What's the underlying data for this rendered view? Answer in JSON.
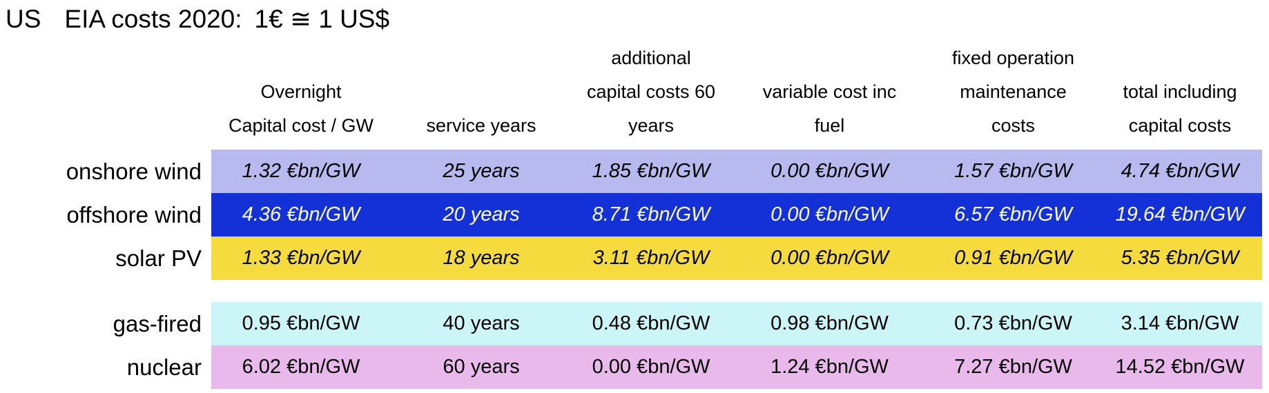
{
  "title": {
    "country": "US",
    "label": "EIA costs 2020:",
    "rate": "1€ ≅ 1 US$"
  },
  "table": {
    "columns": [
      {
        "l1": "",
        "l2": "Overnight",
        "l3": "Capital cost / GW"
      },
      {
        "l1": "",
        "l2": "",
        "l3": "service years"
      },
      {
        "l1": "additional",
        "l2": "capital costs 60",
        "l3": "years"
      },
      {
        "l1": "",
        "l2": "variable cost inc",
        "l3": "fuel"
      },
      {
        "l1": "fixed operation",
        "l2": "maintenance",
        "l3": "costs"
      },
      {
        "l1": "",
        "l2": "total including",
        "l3": "capital costs"
      }
    ],
    "rows": [
      {
        "label": "onshore wind",
        "bg": "#B8B9EE",
        "fg": "#000000",
        "values": [
          "1.32 €bn/GW",
          "25 years",
          "1.85 €bn/GW",
          "0.00 €bn/GW",
          "1.57 €bn/GW",
          "4.74 €bn/GW"
        ]
      },
      {
        "label": "offshore wind",
        "bg": "#1431D8",
        "fg": "#FFFFFF",
        "values": [
          "4.36 €bn/GW",
          "20 years",
          "8.71 €bn/GW",
          "0.00 €bn/GW",
          "6.57 €bn/GW",
          "19.64 €bn/GW"
        ]
      },
      {
        "label": "solar PV",
        "bg": "#F5DB3E",
        "fg": "#000000",
        "values": [
          "1.33 €bn/GW",
          "18 years",
          "3.11 €bn/GW",
          "0.00 €bn/GW",
          "0.91 €bn/GW",
          "5.35 €bn/GW"
        ]
      },
      {
        "label": "gas-fired",
        "bg": "#CBF5F7",
        "fg": "#000000",
        "values": [
          "0.95 €bn/GW",
          "40 years",
          "0.48 €bn/GW",
          "0.98 €bn/GW",
          "0.73 €bn/GW",
          "3.14 €bn/GW"
        ]
      },
      {
        "label": "nuclear",
        "bg": "#EAB9EC",
        "fg": "#000000",
        "values": [
          "6.02 €bn/GW",
          "60 years",
          "0.00 €bn/GW",
          "1.24 €bn/GW",
          "7.27 €bn/GW",
          "14.52 €bn/GW"
        ]
      }
    ]
  },
  "chart_data": {
    "type": "table",
    "title": "US EIA costs 2020: 1€ ≅ 1 US$",
    "unit": "€bn/GW",
    "columns": [
      "Overnight Capital cost / GW",
      "service years",
      "additional capital costs 60 years",
      "variable cost inc fuel",
      "fixed operation maintenance costs",
      "total including capital costs"
    ],
    "rows": [
      {
        "technology": "onshore wind",
        "overnight_capital_cost": 1.32,
        "service_years": 25,
        "additional_capital_costs_60_years": 1.85,
        "variable_cost_inc_fuel": 0.0,
        "fixed_operation_maintenance_costs": 1.57,
        "total_including_capital_costs": 4.74,
        "row_color": "#B8B9EE"
      },
      {
        "technology": "offshore wind",
        "overnight_capital_cost": 4.36,
        "service_years": 20,
        "additional_capital_costs_60_years": 8.71,
        "variable_cost_inc_fuel": 0.0,
        "fixed_operation_maintenance_costs": 6.57,
        "total_including_capital_costs": 19.64,
        "row_color": "#1431D8"
      },
      {
        "technology": "solar PV",
        "overnight_capital_cost": 1.33,
        "service_years": 18,
        "additional_capital_costs_60_years": 3.11,
        "variable_cost_inc_fuel": 0.0,
        "fixed_operation_maintenance_costs": 0.91,
        "total_including_capital_costs": 5.35,
        "row_color": "#F5DB3E"
      },
      {
        "technology": "gas-fired",
        "overnight_capital_cost": 0.95,
        "service_years": 40,
        "additional_capital_costs_60_years": 0.48,
        "variable_cost_inc_fuel": 0.98,
        "fixed_operation_maintenance_costs": 0.73,
        "total_including_capital_costs": 3.14,
        "row_color": "#CBF5F7"
      },
      {
        "technology": "nuclear",
        "overnight_capital_cost": 6.02,
        "service_years": 60,
        "additional_capital_costs_60_years": 0.0,
        "variable_cost_inc_fuel": 1.24,
        "fixed_operation_maintenance_costs": 7.27,
        "total_including_capital_costs": 14.52,
        "row_color": "#EAB9EC"
      }
    ]
  }
}
